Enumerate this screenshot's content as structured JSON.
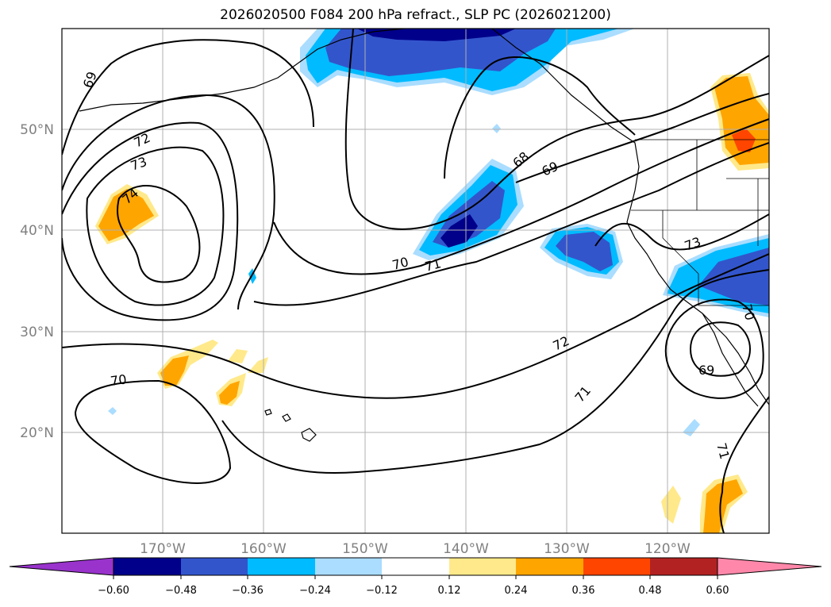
{
  "title": "2026020500 F084 200 hPa refract., SLP PC (2026021200)",
  "map": {
    "lat_ticks": [
      {
        "label": "50°N",
        "lat": 50
      },
      {
        "label": "40°N",
        "lat": 40
      },
      {
        "label": "30°N",
        "lat": 30
      },
      {
        "label": "20°N",
        "lat": 20
      }
    ],
    "lon_ticks": [
      {
        "label": "170°W",
        "lon": -170
      },
      {
        "label": "160°W",
        "lon": -160
      },
      {
        "label": "150°W",
        "lon": -150
      },
      {
        "label": "140°W",
        "lon": -140
      },
      {
        "label": "130°W",
        "lon": -130
      },
      {
        "label": "120°W",
        "lon": -120
      }
    ],
    "contour_labels": [
      "69",
      "72",
      "73",
      "74",
      "68",
      "69",
      "70",
      "71",
      "73",
      "70",
      "72",
      "70",
      "71",
      "69",
      "71"
    ]
  },
  "colorbar": {
    "labels": [
      "−0.60",
      "−0.48",
      "−0.36",
      "−0.24",
      "−0.12",
      "0.12",
      "0.24",
      "0.36",
      "0.48",
      "0.60"
    ],
    "colors": [
      "#9933cc",
      "#00008b",
      "#3355cc",
      "#00bbff",
      "#aaddff",
      "#ffffff",
      "#ffe98a",
      "#ffa500",
      "#ff4500",
      "#b22222",
      "#ff88aa"
    ]
  }
}
